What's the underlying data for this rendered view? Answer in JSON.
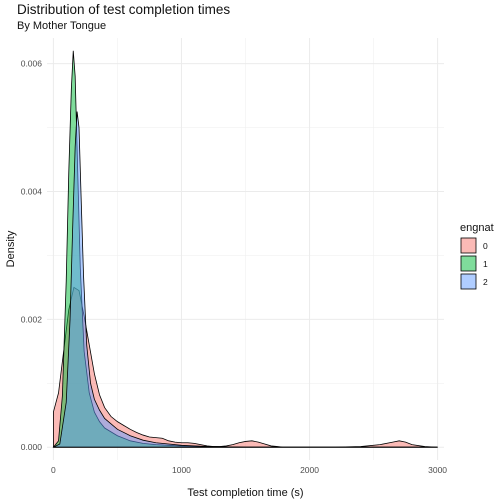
{
  "chart_data": {
    "type": "area",
    "title": "Distribution of test completion times",
    "subtitle": "By Mother Tongue",
    "xlabel": "Test completion time (s)",
    "ylabel": "Density",
    "xlim": [
      -50,
      3050
    ],
    "ylim": [
      -0.0002,
      0.0064
    ],
    "x_ticks": [
      0,
      1000,
      2000,
      3000
    ],
    "x_tick_labels": [
      "0",
      "1000",
      "2000",
      "3000"
    ],
    "y_ticks": [
      0,
      0.002,
      0.004,
      0.006
    ],
    "y_tick_labels": [
      "0.000",
      "0.002",
      "0.004",
      "0.006"
    ],
    "grid": true,
    "legend": {
      "title": "engnat",
      "placement": "right"
    },
    "series": [
      {
        "name": "0",
        "color": "#F8766D",
        "x": [
          0,
          40,
          80,
          120,
          160,
          200,
          240,
          280,
          320,
          360,
          400,
          450,
          500,
          550,
          600,
          650,
          700,
          750,
          800,
          850,
          900,
          950,
          1000,
          1050,
          1100,
          1150,
          1200,
          1250,
          1300,
          1350,
          1400,
          1450,
          1500,
          1550,
          1600,
          1650,
          1700,
          1750,
          1800,
          2000,
          2200,
          2400,
          2550,
          2650,
          2700,
          2750,
          2800,
          2900,
          3000
        ],
        "y": [
          0.00055,
          0.00085,
          0.0015,
          0.00215,
          0.0025,
          0.00245,
          0.00205,
          0.0016,
          0.00115,
          0.00082,
          0.00062,
          0.00048,
          0.0004,
          0.00034,
          0.00028,
          0.00023,
          0.00019,
          0.00016,
          0.00015,
          0.00014,
          0.0001,
          8e-05,
          7e-05,
          7e-05,
          6e-05,
          4e-05,
          2e-05,
          1e-05,
          1e-05,
          2e-05,
          4e-05,
          7e-05,
          9e-05,
          0.0001,
          8e-05,
          5e-05,
          2e-05,
          1e-05,
          0.0,
          0.0,
          0.0,
          1e-05,
          4e-05,
          8e-05,
          0.0001,
          8e-05,
          4e-05,
          1e-05,
          0.0
        ]
      },
      {
        "name": "1",
        "color": "#00BA38",
        "x": [
          0,
          40,
          70,
          100,
          120,
          140,
          155,
          170,
          190,
          210,
          240,
          280,
          320,
          360,
          400,
          500,
          600,
          700,
          800,
          900,
          1000,
          1200,
          1500,
          2000,
          2500,
          3000
        ],
        "y": [
          0.0,
          0.0001,
          0.0008,
          0.0026,
          0.0043,
          0.0056,
          0.0062,
          0.0058,
          0.0043,
          0.0028,
          0.0015,
          0.00085,
          0.00055,
          0.0004,
          0.0003,
          0.00018,
          0.0001,
          6e-05,
          4e-05,
          3e-05,
          2e-05,
          1e-05,
          0.0,
          0.0,
          0.0,
          0.0
        ]
      },
      {
        "name": "2",
        "color": "#619CFF",
        "x": [
          0,
          50,
          100,
          130,
          150,
          170,
          185,
          200,
          215,
          235,
          260,
          290,
          320,
          360,
          400,
          500,
          600,
          700,
          800,
          900,
          1000,
          1200,
          1500,
          2000,
          2500,
          3000
        ],
        "y": [
          0.0,
          5e-05,
          0.0007,
          0.002,
          0.0034,
          0.0047,
          0.00525,
          0.005,
          0.004,
          0.0027,
          0.0016,
          0.001,
          0.00075,
          0.00058,
          0.00045,
          0.00028,
          0.00018,
          0.00011,
          7e-05,
          5e-05,
          3e-05,
          1e-05,
          0.0,
          0.0,
          0.0,
          0.0
        ]
      }
    ]
  }
}
